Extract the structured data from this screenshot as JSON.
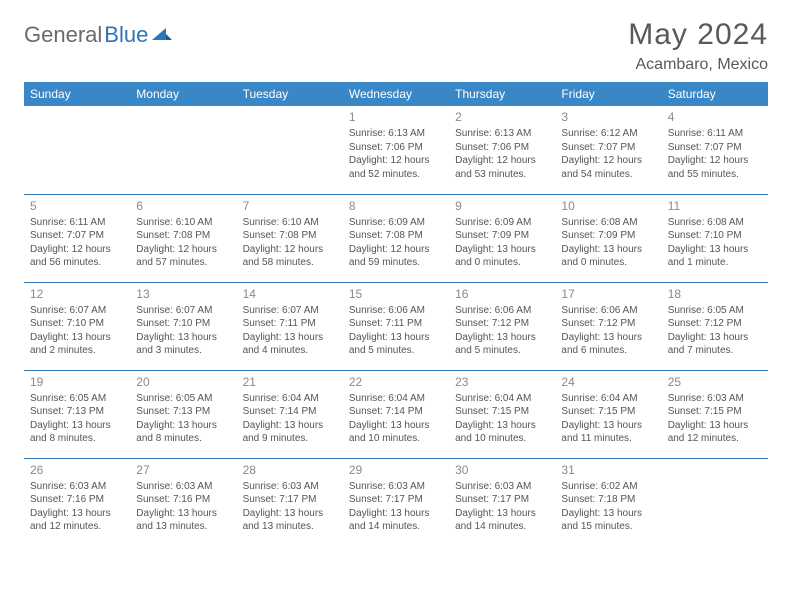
{
  "logo": {
    "part1": "General",
    "part2": "Blue"
  },
  "title": "May 2024",
  "location": "Acambaro, Mexico",
  "headers": [
    "Sunday",
    "Monday",
    "Tuesday",
    "Wednesday",
    "Thursday",
    "Friday",
    "Saturday"
  ],
  "colors": {
    "header_bg": "#3a87c8",
    "header_text": "#ffffff",
    "border": "#2e75b6",
    "title_text": "#595959",
    "logo_gray": "#6a6a6a",
    "logo_blue": "#2e75b6",
    "cell_text": "#555555",
    "daynum_text": "#8a8a8a"
  },
  "weeks": [
    [
      {
        "n": "",
        "s": "",
        "ss": "",
        "d": ""
      },
      {
        "n": "",
        "s": "",
        "ss": "",
        "d": ""
      },
      {
        "n": "",
        "s": "",
        "ss": "",
        "d": ""
      },
      {
        "n": "1",
        "s": "Sunrise: 6:13 AM",
        "ss": "Sunset: 7:06 PM",
        "d": "Daylight: 12 hours and 52 minutes."
      },
      {
        "n": "2",
        "s": "Sunrise: 6:13 AM",
        "ss": "Sunset: 7:06 PM",
        "d": "Daylight: 12 hours and 53 minutes."
      },
      {
        "n": "3",
        "s": "Sunrise: 6:12 AM",
        "ss": "Sunset: 7:07 PM",
        "d": "Daylight: 12 hours and 54 minutes."
      },
      {
        "n": "4",
        "s": "Sunrise: 6:11 AM",
        "ss": "Sunset: 7:07 PM",
        "d": "Daylight: 12 hours and 55 minutes."
      }
    ],
    [
      {
        "n": "5",
        "s": "Sunrise: 6:11 AM",
        "ss": "Sunset: 7:07 PM",
        "d": "Daylight: 12 hours and 56 minutes."
      },
      {
        "n": "6",
        "s": "Sunrise: 6:10 AM",
        "ss": "Sunset: 7:08 PM",
        "d": "Daylight: 12 hours and 57 minutes."
      },
      {
        "n": "7",
        "s": "Sunrise: 6:10 AM",
        "ss": "Sunset: 7:08 PM",
        "d": "Daylight: 12 hours and 58 minutes."
      },
      {
        "n": "8",
        "s": "Sunrise: 6:09 AM",
        "ss": "Sunset: 7:08 PM",
        "d": "Daylight: 12 hours and 59 minutes."
      },
      {
        "n": "9",
        "s": "Sunrise: 6:09 AM",
        "ss": "Sunset: 7:09 PM",
        "d": "Daylight: 13 hours and 0 minutes."
      },
      {
        "n": "10",
        "s": "Sunrise: 6:08 AM",
        "ss": "Sunset: 7:09 PM",
        "d": "Daylight: 13 hours and 0 minutes."
      },
      {
        "n": "11",
        "s": "Sunrise: 6:08 AM",
        "ss": "Sunset: 7:10 PM",
        "d": "Daylight: 13 hours and 1 minute."
      }
    ],
    [
      {
        "n": "12",
        "s": "Sunrise: 6:07 AM",
        "ss": "Sunset: 7:10 PM",
        "d": "Daylight: 13 hours and 2 minutes."
      },
      {
        "n": "13",
        "s": "Sunrise: 6:07 AM",
        "ss": "Sunset: 7:10 PM",
        "d": "Daylight: 13 hours and 3 minutes."
      },
      {
        "n": "14",
        "s": "Sunrise: 6:07 AM",
        "ss": "Sunset: 7:11 PM",
        "d": "Daylight: 13 hours and 4 minutes."
      },
      {
        "n": "15",
        "s": "Sunrise: 6:06 AM",
        "ss": "Sunset: 7:11 PM",
        "d": "Daylight: 13 hours and 5 minutes."
      },
      {
        "n": "16",
        "s": "Sunrise: 6:06 AM",
        "ss": "Sunset: 7:12 PM",
        "d": "Daylight: 13 hours and 5 minutes."
      },
      {
        "n": "17",
        "s": "Sunrise: 6:06 AM",
        "ss": "Sunset: 7:12 PM",
        "d": "Daylight: 13 hours and 6 minutes."
      },
      {
        "n": "18",
        "s": "Sunrise: 6:05 AM",
        "ss": "Sunset: 7:12 PM",
        "d": "Daylight: 13 hours and 7 minutes."
      }
    ],
    [
      {
        "n": "19",
        "s": "Sunrise: 6:05 AM",
        "ss": "Sunset: 7:13 PM",
        "d": "Daylight: 13 hours and 8 minutes."
      },
      {
        "n": "20",
        "s": "Sunrise: 6:05 AM",
        "ss": "Sunset: 7:13 PM",
        "d": "Daylight: 13 hours and 8 minutes."
      },
      {
        "n": "21",
        "s": "Sunrise: 6:04 AM",
        "ss": "Sunset: 7:14 PM",
        "d": "Daylight: 13 hours and 9 minutes."
      },
      {
        "n": "22",
        "s": "Sunrise: 6:04 AM",
        "ss": "Sunset: 7:14 PM",
        "d": "Daylight: 13 hours and 10 minutes."
      },
      {
        "n": "23",
        "s": "Sunrise: 6:04 AM",
        "ss": "Sunset: 7:15 PM",
        "d": "Daylight: 13 hours and 10 minutes."
      },
      {
        "n": "24",
        "s": "Sunrise: 6:04 AM",
        "ss": "Sunset: 7:15 PM",
        "d": "Daylight: 13 hours and 11 minutes."
      },
      {
        "n": "25",
        "s": "Sunrise: 6:03 AM",
        "ss": "Sunset: 7:15 PM",
        "d": "Daylight: 13 hours and 12 minutes."
      }
    ],
    [
      {
        "n": "26",
        "s": "Sunrise: 6:03 AM",
        "ss": "Sunset: 7:16 PM",
        "d": "Daylight: 13 hours and 12 minutes."
      },
      {
        "n": "27",
        "s": "Sunrise: 6:03 AM",
        "ss": "Sunset: 7:16 PM",
        "d": "Daylight: 13 hours and 13 minutes."
      },
      {
        "n": "28",
        "s": "Sunrise: 6:03 AM",
        "ss": "Sunset: 7:17 PM",
        "d": "Daylight: 13 hours and 13 minutes."
      },
      {
        "n": "29",
        "s": "Sunrise: 6:03 AM",
        "ss": "Sunset: 7:17 PM",
        "d": "Daylight: 13 hours and 14 minutes."
      },
      {
        "n": "30",
        "s": "Sunrise: 6:03 AM",
        "ss": "Sunset: 7:17 PM",
        "d": "Daylight: 13 hours and 14 minutes."
      },
      {
        "n": "31",
        "s": "Sunrise: 6:02 AM",
        "ss": "Sunset: 7:18 PM",
        "d": "Daylight: 13 hours and 15 minutes."
      },
      {
        "n": "",
        "s": "",
        "ss": "",
        "d": ""
      }
    ]
  ]
}
